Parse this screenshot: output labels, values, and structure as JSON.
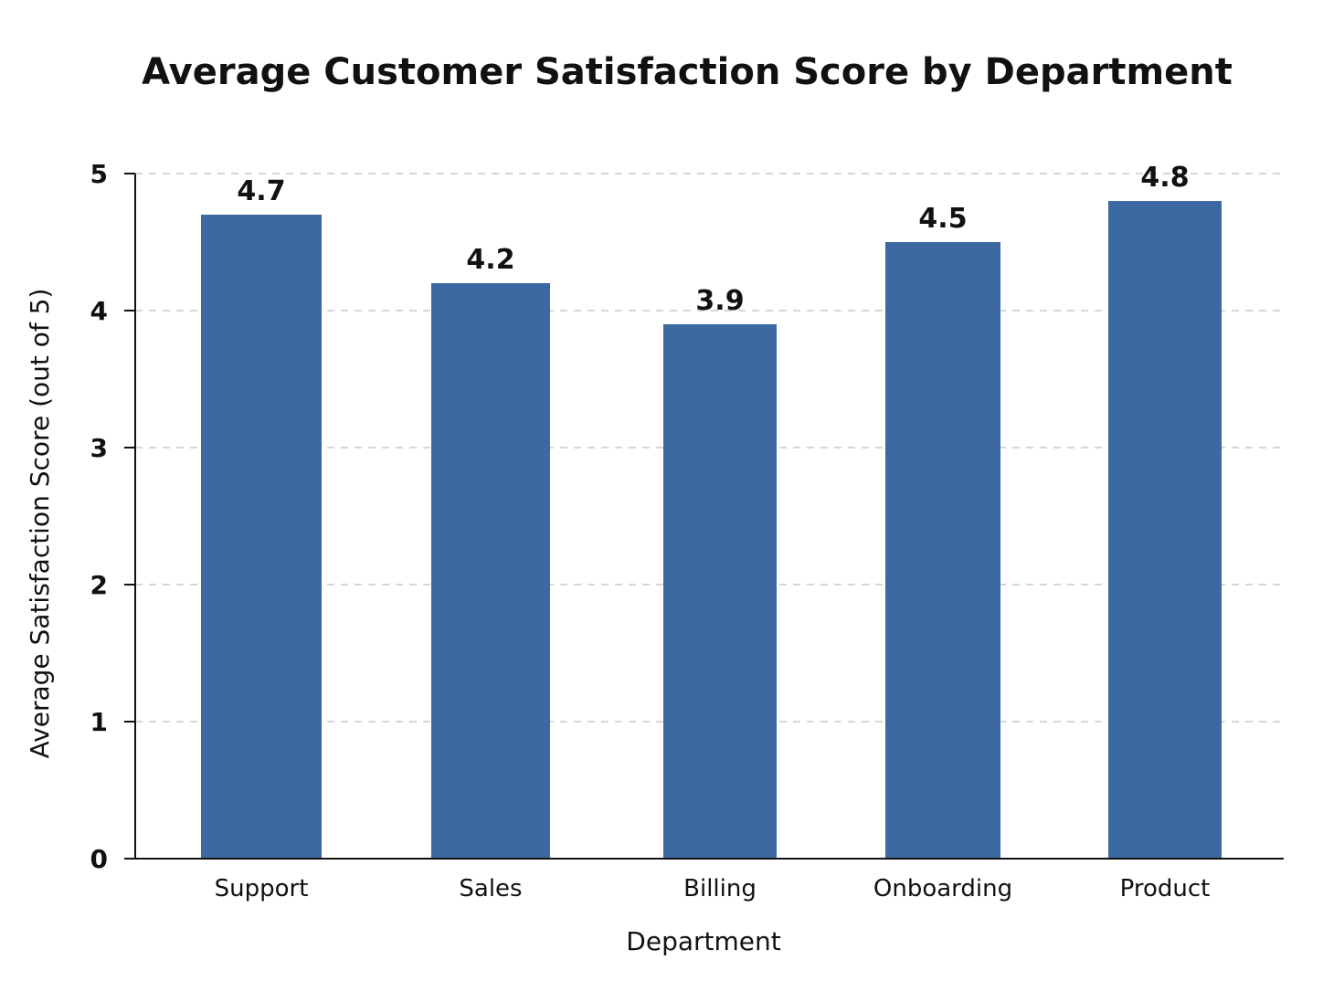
{
  "colors": {
    "bar": "#3d69a3",
    "text": "#111111",
    "grid": "#c8c8c8",
    "background": "#ffffff"
  },
  "chart_data": {
    "type": "bar",
    "title": "Average Customer Satisfaction Score by Department",
    "xlabel": "Department",
    "ylabel": "Average Satisfaction Score (out of 5)",
    "categories": [
      "Support",
      "Sales",
      "Billing",
      "Onboarding",
      "Product"
    ],
    "values": [
      4.7,
      4.2,
      3.9,
      4.5,
      4.8
    ],
    "data_labels": [
      "4.7",
      "4.2",
      "3.9",
      "4.5",
      "4.8"
    ],
    "ylim": [
      0,
      5
    ],
    "yticks": [
      0,
      1,
      2,
      3,
      4,
      5
    ],
    "ytick_labels": [
      "0",
      "1",
      "2",
      "3",
      "4",
      "5"
    ],
    "grid": true,
    "grid_style": "dashed"
  }
}
